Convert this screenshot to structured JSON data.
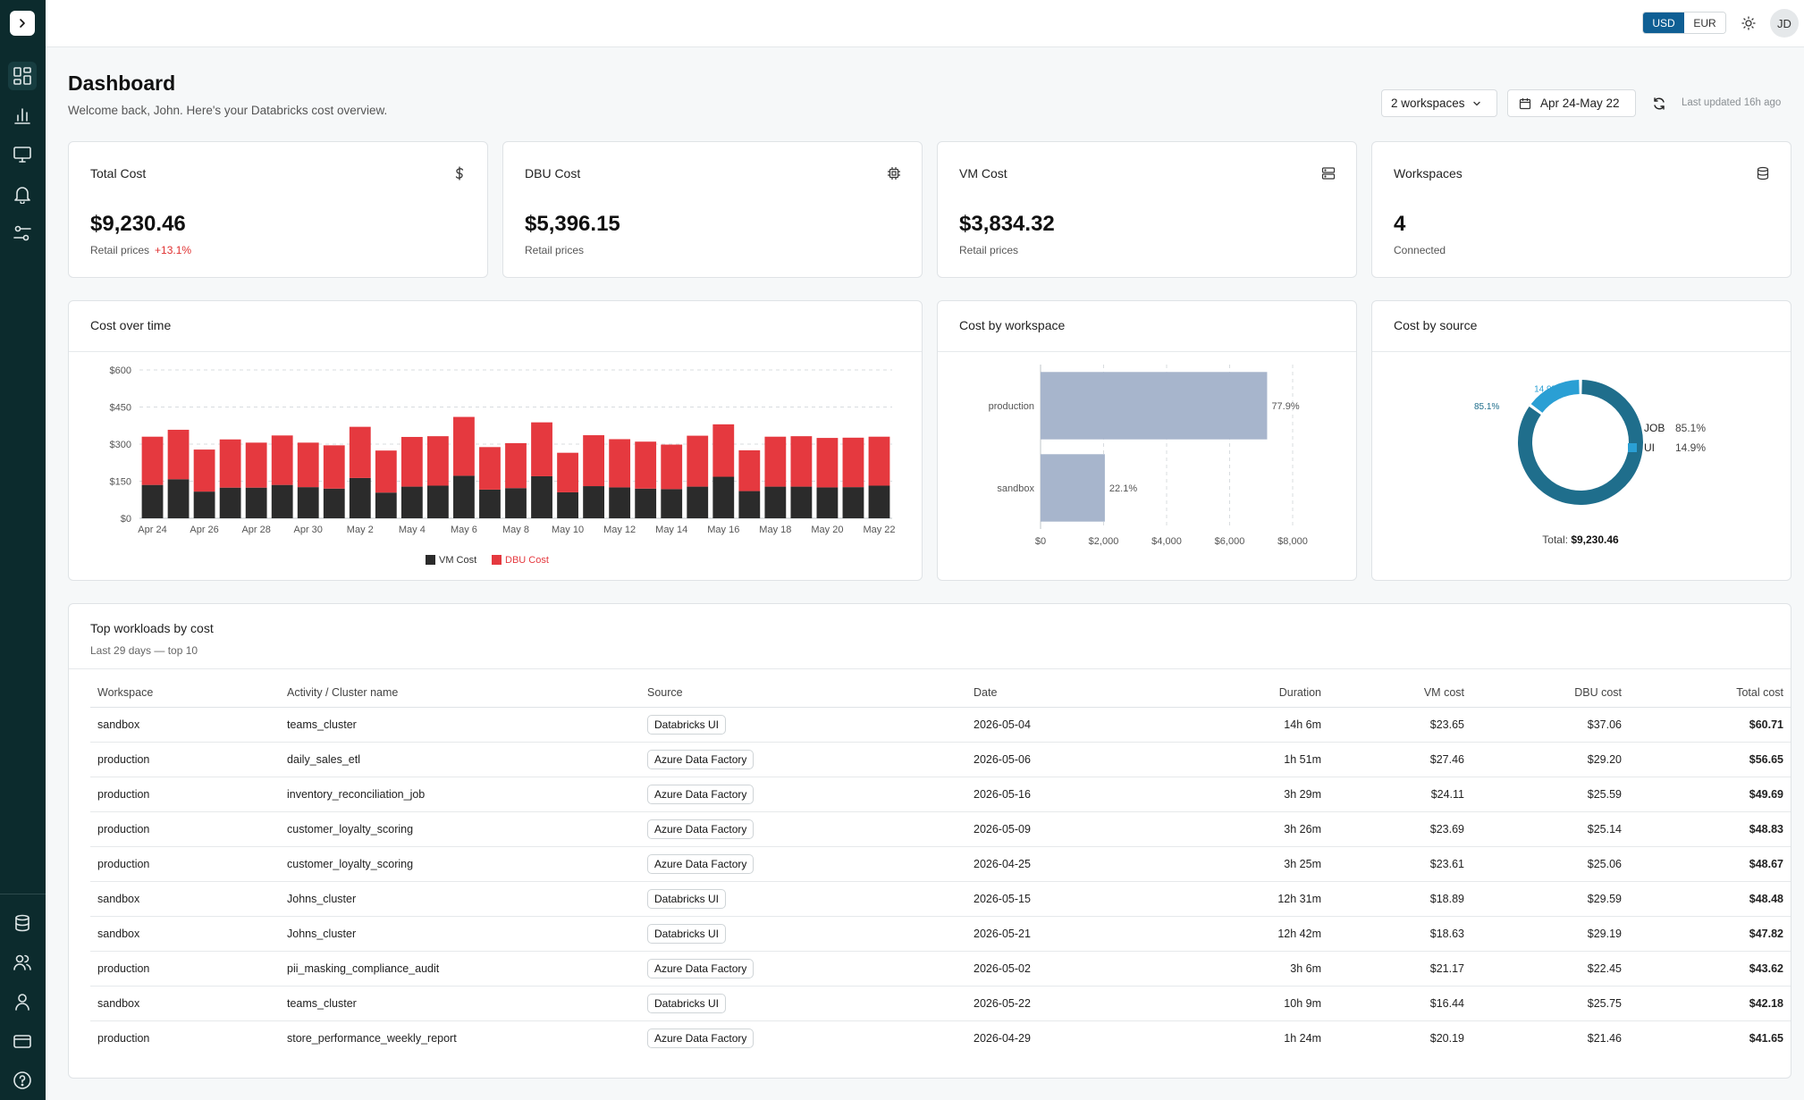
{
  "topbar": {
    "currency": {
      "options": [
        "USD",
        "EUR"
      ],
      "selected": "USD"
    },
    "avatar_initials": "JD"
  },
  "sidebar": {
    "top_items": [
      {
        "name": "dashboard",
        "icon": "dashboard-icon",
        "active": true
      },
      {
        "name": "analytics",
        "icon": "bar-chart-icon",
        "active": false
      },
      {
        "name": "compute",
        "icon": "monitor-icon",
        "active": false
      },
      {
        "name": "alerts",
        "icon": "bell-icon",
        "active": false
      },
      {
        "name": "settings",
        "icon": "sliders-icon",
        "active": false
      }
    ],
    "bottom_items": [
      {
        "name": "data",
        "icon": "database-icon"
      },
      {
        "name": "teams",
        "icon": "users-icon"
      },
      {
        "name": "profile",
        "icon": "user-icon"
      },
      {
        "name": "billing",
        "icon": "credit-card-icon"
      },
      {
        "name": "help",
        "icon": "help-circle-icon"
      }
    ]
  },
  "header": {
    "title": "Dashboard",
    "subtitle": "Welcome back, John. Here's your Databricks cost overview.",
    "workspace_filter": "2 workspaces",
    "date_range": "Apr 24-May 22",
    "last_updated": "Last updated 16h ago"
  },
  "kpis": [
    {
      "label": "Total Cost",
      "value": "$9,230.46",
      "note": "Retail prices",
      "delta": "+13.1%",
      "icon": "dollar-icon"
    },
    {
      "label": "DBU Cost",
      "value": "$5,396.15",
      "note": "Retail prices",
      "delta": "",
      "icon": "chip-icon"
    },
    {
      "label": "VM Cost",
      "value": "$3,834.32",
      "note": "Retail prices",
      "delta": "",
      "icon": "server-icon"
    },
    {
      "label": "Workspaces",
      "value": "4",
      "note": "Connected",
      "delta": "",
      "icon": "database-icon"
    }
  ],
  "colors": {
    "vm": "#2b2b2b",
    "dbu": "#e5393f",
    "workspace_bar": "#a7b5cc",
    "job": "#1f6e8c",
    "ui": "#2a9fd4",
    "currency_active": "#0f5f94"
  },
  "chart_data": [
    {
      "type": "bar",
      "stacked": true,
      "title": "Cost over time",
      "categories": [
        "Apr 24",
        "Apr 25",
        "Apr 26",
        "Apr 27",
        "Apr 28",
        "Apr 29",
        "Apr 30",
        "May 1",
        "May 2",
        "May 3",
        "May 4",
        "May 5",
        "May 6",
        "May 7",
        "May 8",
        "May 9",
        "May 10",
        "May 11",
        "May 12",
        "May 13",
        "May 14",
        "May 15",
        "May 16",
        "May 17",
        "May 18",
        "May 19",
        "May 20",
        "May 21",
        "May 22"
      ],
      "tick_labels": [
        "Apr 24",
        "Apr 26",
        "Apr 28",
        "Apr 30",
        "May 2",
        "May 4",
        "May 6",
        "May 8",
        "May 10",
        "May 12",
        "May 14",
        "May 16",
        "May 18",
        "May 20",
        "May 22"
      ],
      "series": [
        {
          "name": "VM Cost",
          "values": [
            135,
            158,
            108,
            124,
            124,
            135,
            126,
            120,
            163,
            104,
            128,
            132,
            172,
            116,
            122,
            170,
            105,
            130,
            125,
            120,
            118,
            128,
            168,
            110,
            128,
            128,
            125,
            126,
            132
          ]
        },
        {
          "name": "DBU Cost",
          "values": [
            195,
            200,
            170,
            195,
            182,
            200,
            180,
            175,
            207,
            170,
            201,
            200,
            238,
            172,
            182,
            218,
            160,
            206,
            195,
            190,
            180,
            206,
            212,
            165,
            202,
            204,
            200,
            200,
            198
          ]
        }
      ],
      "y_ticks": [
        "$0",
        "$150",
        "$300",
        "$450",
        "$600"
      ],
      "ylim": [
        0,
        600
      ],
      "legend": "bottom"
    },
    {
      "type": "bar",
      "orientation": "horizontal",
      "title": "Cost by workspace",
      "categories": [
        "production",
        "sandbox"
      ],
      "values": [
        7190,
        2040
      ],
      "value_labels": [
        "77.9%",
        "22.1%"
      ],
      "x_ticks": [
        "$0",
        "$2,000",
        "$4,000",
        "$6,000",
        "$8,000"
      ],
      "xlim": [
        0,
        8000
      ]
    },
    {
      "type": "pie",
      "donut": true,
      "title": "Cost by source",
      "slices": [
        {
          "label": "JOB",
          "value": 85.1,
          "display": "85.1%"
        },
        {
          "label": "UI",
          "value": 14.9,
          "display": "14.9%"
        }
      ],
      "total_label": "Total:",
      "total_value": "$9,230.46",
      "legend": "right"
    }
  ],
  "workloads": {
    "title": "Top workloads by cost",
    "subtitle": "Last 29 days — top 10",
    "columns": [
      "Workspace",
      "Activity / Cluster name",
      "Source",
      "Date",
      "Duration",
      "VM cost",
      "DBU cost",
      "Total cost"
    ],
    "rows": [
      [
        "sandbox",
        "teams_cluster",
        "Databricks UI",
        "2026-05-04",
        "14h 6m",
        "$23.65",
        "$37.06",
        "$60.71"
      ],
      [
        "production",
        "daily_sales_etl",
        "Azure Data Factory",
        "2026-05-06",
        "1h 51m",
        "$27.46",
        "$29.20",
        "$56.65"
      ],
      [
        "production",
        "inventory_reconciliation_job",
        "Azure Data Factory",
        "2026-05-16",
        "3h 29m",
        "$24.11",
        "$25.59",
        "$49.69"
      ],
      [
        "production",
        "customer_loyalty_scoring",
        "Azure Data Factory",
        "2026-05-09",
        "3h 26m",
        "$23.69",
        "$25.14",
        "$48.83"
      ],
      [
        "production",
        "customer_loyalty_scoring",
        "Azure Data Factory",
        "2026-04-25",
        "3h 25m",
        "$23.61",
        "$25.06",
        "$48.67"
      ],
      [
        "sandbox",
        "Johns_cluster",
        "Databricks UI",
        "2026-05-15",
        "12h 31m",
        "$18.89",
        "$29.59",
        "$48.48"
      ],
      [
        "sandbox",
        "Johns_cluster",
        "Databricks UI",
        "2026-05-21",
        "12h 42m",
        "$18.63",
        "$29.19",
        "$47.82"
      ],
      [
        "production",
        "pii_masking_compliance_audit",
        "Azure Data Factory",
        "2026-05-02",
        "3h 6m",
        "$21.17",
        "$22.45",
        "$43.62"
      ],
      [
        "sandbox",
        "teams_cluster",
        "Databricks UI",
        "2026-05-22",
        "10h 9m",
        "$16.44",
        "$25.75",
        "$42.18"
      ],
      [
        "production",
        "store_performance_weekly_report",
        "Azure Data Factory",
        "2026-04-29",
        "1h 24m",
        "$20.19",
        "$21.46",
        "$41.65"
      ]
    ]
  }
}
